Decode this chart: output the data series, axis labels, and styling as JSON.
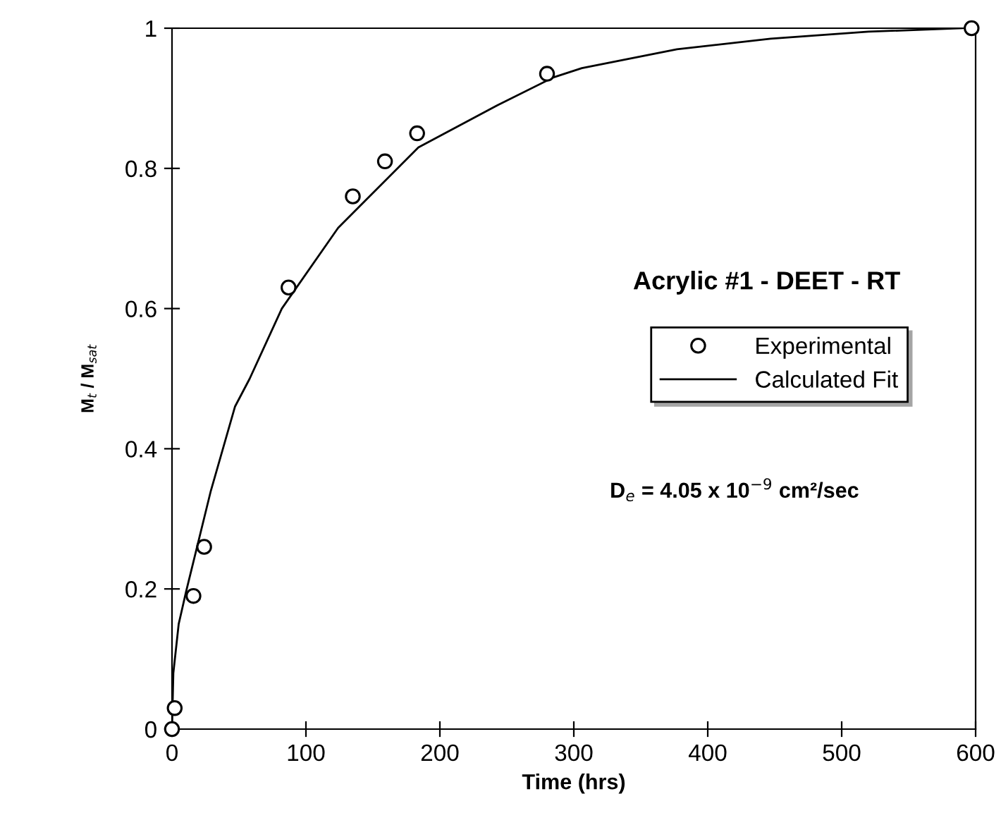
{
  "chart_data": {
    "type": "scatter",
    "title": "Acrylic #1 - DEET - RT",
    "xlabel": "Time (hrs)",
    "ylabel": "M$_{t}$ / M$_{sat}$",
    "annotations": [
      "D$_{e}$ = 4.05 x 10$^{−9}$ cm²/sec"
    ],
    "series": [
      {
        "name": "Experimental",
        "color": "#000000",
        "x": [
          0,
          2,
          16,
          24,
          87,
          135,
          159,
          183,
          280,
          597
        ],
        "values": [
          0,
          0.03,
          0.19,
          0.26,
          0.63,
          0.76,
          0.81,
          0.85,
          0.935,
          1.0
        ]
      },
      {
        "name": "Calculated Fit",
        "type": "line",
        "marker": "none",
        "line_style": "solid",
        "color": "#000000",
        "x": [
          0,
          1,
          5,
          10.5,
          29,
          47,
          58,
          82,
          124,
          184,
          243,
          285,
          306,
          377,
          447,
          520,
          590
        ],
        "values": [
          0,
          0.08,
          0.15,
          0.196,
          0.34,
          0.46,
          0.5,
          0.6,
          0.715,
          0.83,
          0.89,
          0.93,
          0.943,
          0.97,
          0.985,
          0.995,
          1.0
        ]
      }
    ],
    "xlim": [
      0,
      600
    ],
    "ylim": [
      0,
      1
    ],
    "xticks": [
      0,
      100,
      200,
      300,
      400,
      500,
      600
    ],
    "yticks": [
      0,
      0.2,
      0.4,
      0.6,
      0.8,
      1
    ],
    "grid": false,
    "legend": "right"
  }
}
